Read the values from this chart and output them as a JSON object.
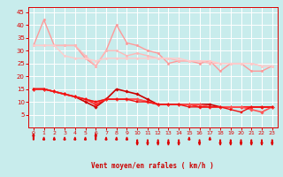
{
  "x": [
    0,
    1,
    2,
    3,
    4,
    5,
    6,
    7,
    8,
    9,
    10,
    11,
    12,
    13,
    14,
    15,
    16,
    17,
    18,
    19,
    20,
    21,
    22,
    23
  ],
  "lines": [
    {
      "y": [
        32,
        42,
        32,
        32,
        32,
        27,
        24,
        30,
        40,
        33,
        32,
        30,
        29,
        25,
        26,
        26,
        25,
        26,
        22,
        25,
        25,
        22,
        22,
        24
      ],
      "color": "#FF9999",
      "lw": 1.0,
      "marker": "o",
      "ms": 1.8
    },
    {
      "y": [
        32,
        32,
        32,
        32,
        32,
        28,
        24,
        30,
        30,
        28,
        29,
        28,
        27,
        27,
        26,
        26,
        26,
        25,
        25,
        25,
        25,
        25,
        24,
        24
      ],
      "color": "#FFB8B8",
      "lw": 1.0,
      "marker": "o",
      "ms": 1.8
    },
    {
      "y": [
        32,
        32,
        32,
        28,
        27,
        27,
        26,
        27,
        27,
        27,
        27,
        27,
        27,
        27,
        27,
        26,
        26,
        26,
        25,
        25,
        25,
        25,
        24,
        24
      ],
      "color": "#FFCCCC",
      "lw": 1.0,
      "marker": "o",
      "ms": 1.8
    },
    {
      "y": [
        15,
        15,
        14,
        13,
        12,
        10,
        8,
        11,
        15,
        14,
        13,
        11,
        9,
        9,
        9,
        9,
        9,
        9,
        8,
        8,
        8,
        8,
        8,
        8
      ],
      "color": "#CC0000",
      "lw": 1.2,
      "marker": "D",
      "ms": 1.8
    },
    {
      "y": [
        15,
        15,
        14,
        13,
        12,
        11,
        9,
        11,
        11,
        11,
        11,
        10,
        9,
        9,
        9,
        9,
        8,
        8,
        8,
        8,
        8,
        8,
        8,
        8
      ],
      "color": "#FF2222",
      "lw": 1.2,
      "marker": "D",
      "ms": 1.8
    },
    {
      "y": [
        15,
        15,
        14,
        13,
        12,
        11,
        10,
        11,
        11,
        11,
        11,
        10,
        9,
        9,
        9,
        9,
        9,
        8,
        8,
        8,
        8,
        7,
        6,
        8
      ],
      "color": "#FF5555",
      "lw": 1.2,
      "marker": "D",
      "ms": 1.8
    },
    {
      "y": [
        15,
        15,
        14,
        13,
        12,
        11,
        10,
        11,
        11,
        11,
        10,
        10,
        9,
        9,
        9,
        8,
        8,
        8,
        8,
        7,
        6,
        8,
        8,
        8
      ],
      "color": "#EE1111",
      "lw": 1.0,
      "marker": "s",
      "ms": 1.5
    }
  ],
  "xlabel": "Vent moyen/en rafales ( km/h )",
  "ylim": [
    0,
    47
  ],
  "xlim": [
    -0.5,
    23.5
  ],
  "yticks": [
    5,
    10,
    15,
    20,
    25,
    30,
    35,
    40,
    45
  ],
  "xticks": [
    0,
    1,
    2,
    3,
    4,
    5,
    6,
    7,
    8,
    9,
    10,
    11,
    12,
    13,
    14,
    15,
    16,
    17,
    18,
    19,
    20,
    21,
    22,
    23
  ],
  "bg_color": "#C8ECEC",
  "grid_color": "#FFFFFF",
  "tick_color": "#DD0000",
  "label_color": "#CC0000"
}
